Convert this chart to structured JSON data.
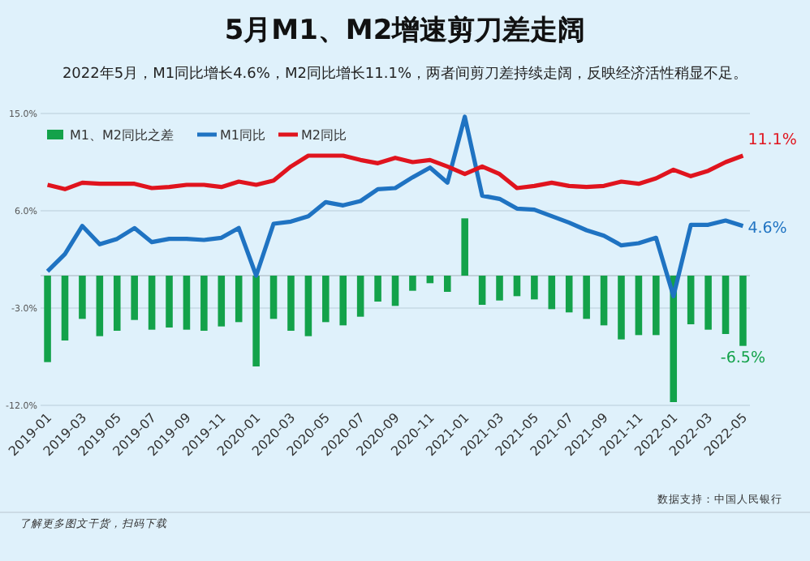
{
  "chart_data": {
    "type": "bar",
    "title": "5月M1、M2增速剪刀差走阔",
    "subtitle": "2022年5月，M1同比增长4.6%，M2同比增长11.1%，两者间剪刀差持续走阔，反映经济活性稍显不足。",
    "categories": [
      "2019-01",
      null,
      "2019-03",
      null,
      "2019-05",
      null,
      "2019-07",
      null,
      "2019-09",
      null,
      "2019-11",
      null,
      "2020-01",
      null,
      "2020-03",
      null,
      "2020-05",
      null,
      "2020-07",
      null,
      "2020-09",
      null,
      "2020-11",
      null,
      "2021-01",
      null,
      "2021-03",
      null,
      "2021-05",
      null,
      "2021-07",
      null,
      "2021-09",
      null,
      "2021-11",
      null,
      "2022-01",
      null,
      "2022-03",
      null,
      "2022-05"
    ],
    "series": [
      {
        "name": "M1、M2同比之差",
        "color": "#13a24a",
        "values": [
          -8.0,
          -6.0,
          -4.0,
          -5.6,
          -5.1,
          -4.1,
          -5.0,
          -4.8,
          -5.0,
          -5.1,
          -4.7,
          -4.3,
          -8.4,
          -4.0,
          -5.1,
          -5.6,
          -4.3,
          -4.6,
          -3.8,
          -2.4,
          -2.8,
          -1.4,
          -0.7,
          -1.5,
          5.3,
          -2.7,
          -2.3,
          -1.9,
          -2.2,
          -3.1,
          -3.4,
          -4.0,
          -4.6,
          -5.9,
          -5.5,
          -5.5,
          -11.7,
          -4.5,
          -5.0,
          -5.4,
          -6.5
        ],
        "value_labels": [
          null,
          null,
          null,
          null,
          null,
          null,
          null,
          null,
          null,
          null,
          null,
          null,
          null,
          null,
          null,
          null,
          null,
          null,
          null,
          null,
          null,
          null,
          null,
          null,
          null,
          null,
          null,
          null,
          null,
          null,
          null,
          null,
          null,
          null,
          null,
          null,
          null,
          null,
          null,
          null,
          "-6.5%"
        ]
      },
      {
        "name": "M1同比",
        "type": "line",
        "color": "#1f73c2",
        "values": [
          0.4,
          2.0,
          4.6,
          2.9,
          3.4,
          4.4,
          3.1,
          3.4,
          3.4,
          3.3,
          3.5,
          4.4,
          0.0,
          4.8,
          5.0,
          5.5,
          6.8,
          6.5,
          6.9,
          8.0,
          8.1,
          9.1,
          10.0,
          8.6,
          14.7,
          7.4,
          7.1,
          6.2,
          6.1,
          5.5,
          4.9,
          4.2,
          3.7,
          2.8,
          3.0,
          3.5,
          -1.9,
          4.7,
          4.7,
          5.1,
          4.6
        ],
        "value_labels": [
          null,
          null,
          null,
          null,
          null,
          null,
          null,
          null,
          null,
          null,
          null,
          null,
          null,
          null,
          null,
          null,
          null,
          null,
          null,
          null,
          null,
          null,
          null,
          null,
          null,
          null,
          null,
          null,
          null,
          null,
          null,
          null,
          null,
          null,
          null,
          null,
          null,
          null,
          null,
          null,
          "4.6%"
        ]
      },
      {
        "name": "M2同比",
        "type": "line",
        "color": "#e0141e",
        "values": [
          8.4,
          8.0,
          8.6,
          8.5,
          8.5,
          8.5,
          8.1,
          8.2,
          8.4,
          8.4,
          8.2,
          8.7,
          8.4,
          8.8,
          10.1,
          11.1,
          11.1,
          11.1,
          10.7,
          10.4,
          10.9,
          10.5,
          10.7,
          10.1,
          9.4,
          10.1,
          9.4,
          8.1,
          8.3,
          8.6,
          8.3,
          8.2,
          8.3,
          8.7,
          8.5,
          9.0,
          9.8,
          9.2,
          9.7,
          10.5,
          11.1
        ],
        "value_labels": [
          null,
          null,
          null,
          null,
          null,
          null,
          null,
          null,
          null,
          null,
          null,
          null,
          null,
          null,
          null,
          null,
          null,
          null,
          null,
          null,
          null,
          null,
          null,
          null,
          null,
          null,
          null,
          null,
          null,
          null,
          null,
          null,
          null,
          null,
          null,
          null,
          null,
          null,
          null,
          null,
          "11.1%"
        ]
      }
    ],
    "ylim": [
      -12,
      15
    ],
    "yticks": [
      {
        "value": 15,
        "label": "15.0%"
      },
      {
        "value": 6,
        "label": "6.0%"
      },
      {
        "value": -3,
        "label": "-3.0%"
      },
      {
        "value": -12,
        "label": "-12.0%"
      }
    ],
    "grid": "y",
    "legend": "top left",
    "line_style": "solid",
    "marker": "none",
    "annotations": [
      "数据支持：中国人民银行",
      "了解更多图文干货，扫码下载"
    ]
  }
}
